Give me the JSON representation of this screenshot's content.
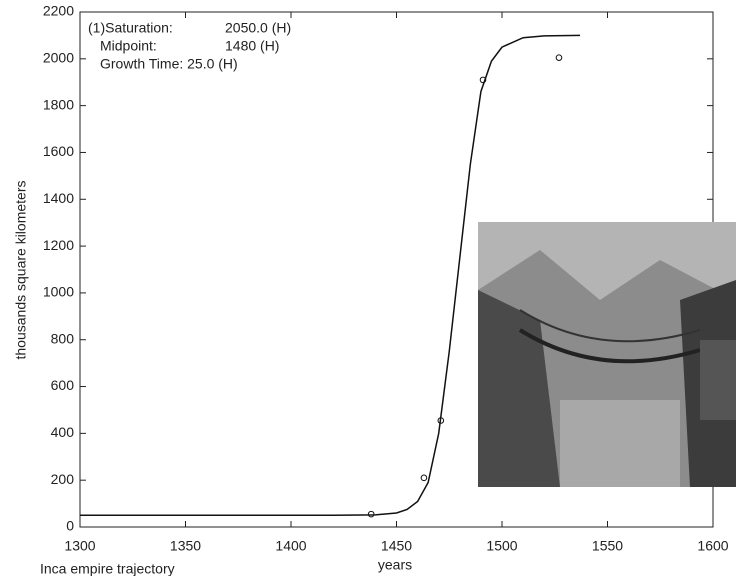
{
  "chart_data": {
    "type": "line",
    "xlabel": "years",
    "ylabel": "thousands square kilometers",
    "caption": "Inca empire trajectory",
    "annotations": [
      [
        "(1)Saturation:",
        "2050.0 (H)"
      ],
      [
        "Midpoint:",
        "1480 (H)"
      ],
      [
        "Growth Time: 25.0 (H)"
      ]
    ],
    "xlim": [
      1300,
      1600
    ],
    "xticks": [
      1300,
      1350,
      1400,
      1450,
      1500,
      1550,
      1600
    ],
    "ylim": [
      0,
      2200
    ],
    "yticks": [
      0,
      200,
      400,
      600,
      800,
      1000,
      1200,
      1400,
      1600,
      1800,
      2000,
      2200
    ],
    "series": [
      {
        "style": "line",
        "color": "#111",
        "x": [
          1300,
          1350,
          1400,
          1420,
          1440,
          1450,
          1455,
          1460,
          1465,
          1470,
          1475,
          1480,
          1485,
          1490,
          1495,
          1500,
          1510,
          1520,
          1537
        ],
        "values": [
          50,
          50,
          50,
          50,
          52,
          60,
          75,
          109,
          190,
          400,
          750,
          1150,
          1550,
          1860,
          1990,
          2050,
          2090,
          2098,
          2100
        ]
      },
      {
        "style": "markers",
        "color": "#111",
        "x": [
          1438,
          1463,
          1471,
          1491,
          1527
        ],
        "values": [
          55,
          210,
          455,
          1910,
          2005
        ]
      }
    ]
  }
}
